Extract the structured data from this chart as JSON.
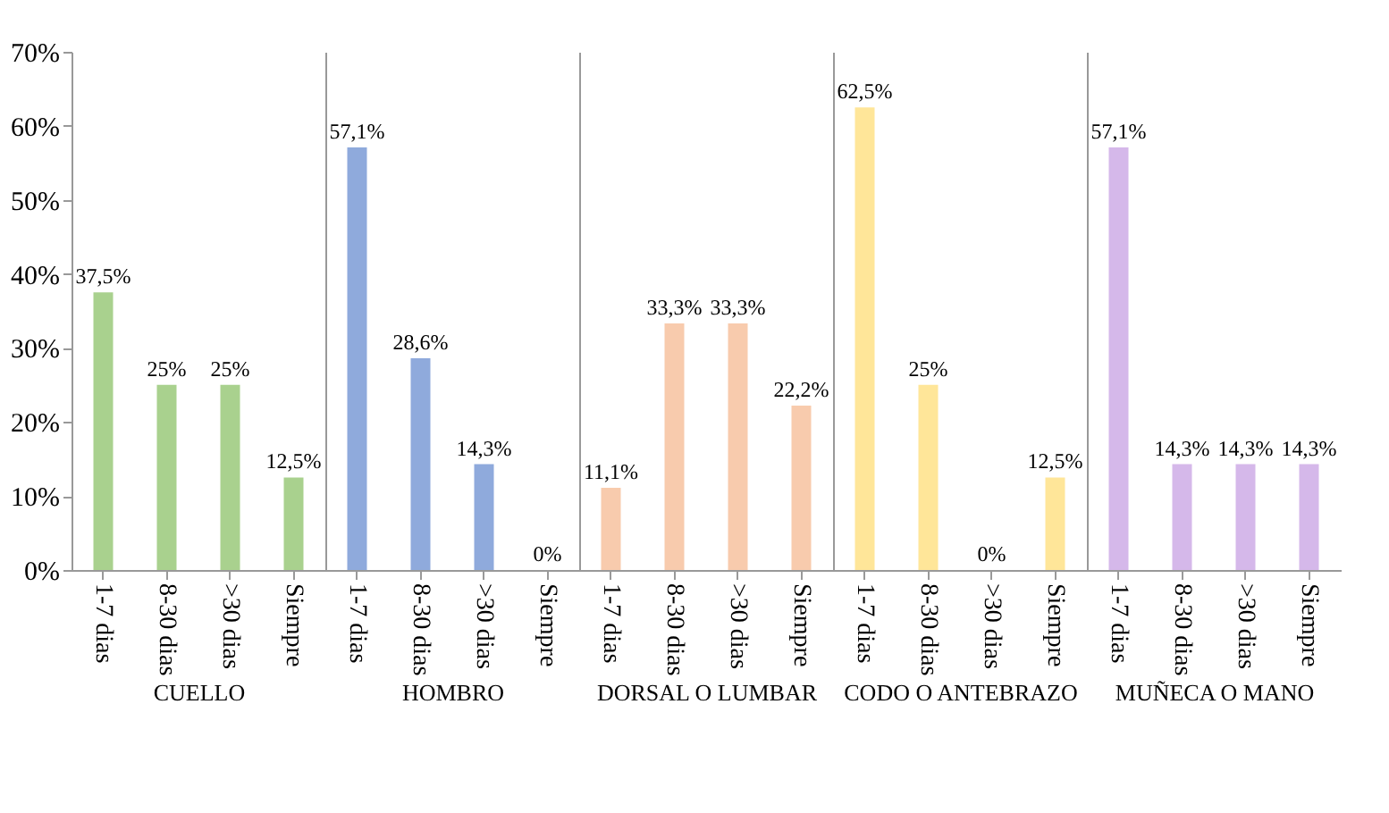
{
  "chart_data": [
    {
      "type": "bar",
      "xlabel": "CUELLO",
      "categories": [
        "1-7 dias",
        "8-30 dias",
        ">30 dias",
        "Siempre"
      ],
      "series": [
        {
          "color": "#a9d18e",
          "values": [
            37.5,
            25,
            25,
            12.5
          ],
          "value_labels": [
            "37,5%",
            "25%",
            "25%",
            "12,5%"
          ]
        }
      ],
      "ylim": [
        0,
        70
      ],
      "yticks": [
        {
          "value": 0,
          "label": "0%"
        },
        {
          "value": 10,
          "label": "10%"
        },
        {
          "value": 20,
          "label": "20%"
        },
        {
          "value": 30,
          "label": "30%"
        },
        {
          "value": 40,
          "label": "40%"
        },
        {
          "value": 50,
          "label": "50%"
        },
        {
          "value": 60,
          "label": "60%"
        },
        {
          "value": 70,
          "label": "70%"
        }
      ],
      "grid": false
    },
    {
      "type": "bar",
      "xlabel": "HOMBRO",
      "categories": [
        "1-7 dias",
        "8-30 dias",
        ">30 dias",
        "Siempre"
      ],
      "series": [
        {
          "color": "#8faadc",
          "values": [
            57.1,
            28.6,
            14.3,
            0
          ],
          "value_labels": [
            "57,1%",
            "28,6%",
            "14,3%",
            "0%"
          ]
        }
      ],
      "ylim": [
        0,
        70
      ],
      "tick_labels": "x",
      "grid": false
    },
    {
      "type": "bar",
      "xlabel": "DORSAL O LUMBAR",
      "categories": [
        "1-7 dias",
        "8-30 dias",
        ">30 dias",
        "Siempre"
      ],
      "series": [
        {
          "color": "#f8cbad",
          "values": [
            11.1,
            33.3,
            33.3,
            22.2
          ],
          "value_labels": [
            "11,1%",
            "33,3%",
            "33,3%",
            "22,2%"
          ]
        }
      ],
      "ylim": [
        0,
        70
      ],
      "tick_labels": "x",
      "grid": false
    },
    {
      "type": "bar",
      "xlabel": "CODO O ANTEBRAZO",
      "categories": [
        "1-7 dias",
        "8-30 dias",
        ">30 dias",
        "Siempre"
      ],
      "series": [
        {
          "color": "#ffe699",
          "values": [
            62.5,
            25,
            0,
            12.5
          ],
          "value_labels": [
            "62,5%",
            "25%",
            "0%",
            "12,5%"
          ]
        }
      ],
      "ylim": [
        0,
        70
      ],
      "tick_labels": "x",
      "grid": false
    },
    {
      "type": "bar",
      "xlabel": "MUÑECA O MANO",
      "categories": [
        "1-7 dias",
        "8-30 dias",
        ">30 dias",
        "Siempre"
      ],
      "series": [
        {
          "color": "#d5b8ea",
          "values": [
            57.1,
            14.3,
            14.3,
            14.3
          ],
          "value_labels": [
            "57,1%",
            "14,3%",
            "14,3%",
            "14,3%"
          ]
        }
      ],
      "ylim": [
        0,
        70
      ],
      "tick_labels": "x",
      "grid": false
    }
  ]
}
